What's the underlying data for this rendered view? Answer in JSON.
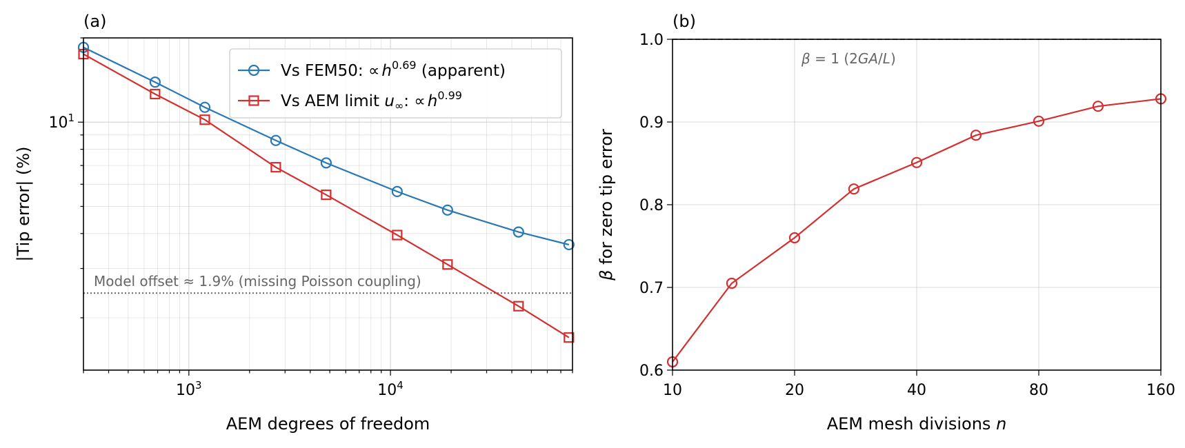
{
  "chart_data": [
    {
      "type": "line",
      "panel_label": "(a)",
      "xlabel": "AEM degrees of freedom",
      "ylabel": "|Tip error| (%)",
      "xscale": "log",
      "yscale": "log",
      "xlim": [
        300,
        80000
      ],
      "ylim": [
        1.3,
        20
      ],
      "grid": "both (major + minor)",
      "legend_position": "top-right",
      "x_ticks": [
        {
          "value": 1000,
          "base": "10",
          "exp": "3"
        },
        {
          "value": 10000,
          "base": "10",
          "exp": "4"
        }
      ],
      "y_ticks": [
        {
          "value": 10,
          "base": "10",
          "exp": "1"
        }
      ],
      "series": [
        {
          "name_prefix": "Vs FEM50: ∝",
          "name_var": "h",
          "name_exp": "0.69",
          "name_suffix": " (apparent)",
          "color": "#2878b5",
          "marker": "circle",
          "x": [
            300,
            680,
            1200,
            2700,
            4800,
            10800,
            19200,
            43200,
            76800
          ],
          "y": [
            18.5,
            13.9,
            11.3,
            8.6,
            7.15,
            5.65,
            4.85,
            4.05,
            3.65
          ]
        },
        {
          "name_prefix": "Vs AEM limit ",
          "name_var": "u",
          "name_sub": "∞",
          "name_mid": ": ∝",
          "name_var2": "h",
          "name_exp": "0.99",
          "color": "#d32f2f",
          "marker": "square",
          "x": [
            300,
            680,
            1200,
            2700,
            4800,
            10800,
            19200,
            43200,
            76800
          ],
          "y": [
            17.5,
            12.6,
            10.2,
            6.9,
            5.5,
            3.95,
            3.1,
            2.2,
            1.7
          ]
        }
      ],
      "annotation": {
        "text": "Model offset ≈ 1.9% (missing Poisson coupling)",
        "y": 2.45,
        "line_color": "#666666"
      }
    },
    {
      "type": "line",
      "panel_label": "(b)",
      "xlabel_prefix": "AEM mesh divisions ",
      "xlabel_var": "n",
      "ylabel_var": "β",
      "ylabel_suffix": " for zero tip error",
      "xscale": "log",
      "xlim": [
        10,
        160
      ],
      "ylim": [
        0.6,
        1.0
      ],
      "grid": "major",
      "x_ticks": [
        10,
        20,
        40,
        80,
        160
      ],
      "y_ticks": [
        "0.6",
        "0.7",
        "0.8",
        "0.9",
        "1.0"
      ],
      "reference_line": {
        "y": 1.0,
        "style": "dashed",
        "label_var": "β",
        "label_mid": " = 1 (2",
        "label_var2": "GA",
        "label_slash": "/",
        "label_var3": "L",
        "label_end": ")"
      },
      "series": [
        {
          "color": "#d32f2f",
          "marker": "circle",
          "x": [
            10,
            14,
            20,
            28,
            40,
            56,
            80,
            112,
            160
          ],
          "y": [
            0.61,
            0.705,
            0.76,
            0.819,
            0.851,
            0.884,
            0.901,
            0.919,
            0.928
          ]
        }
      ]
    }
  ]
}
